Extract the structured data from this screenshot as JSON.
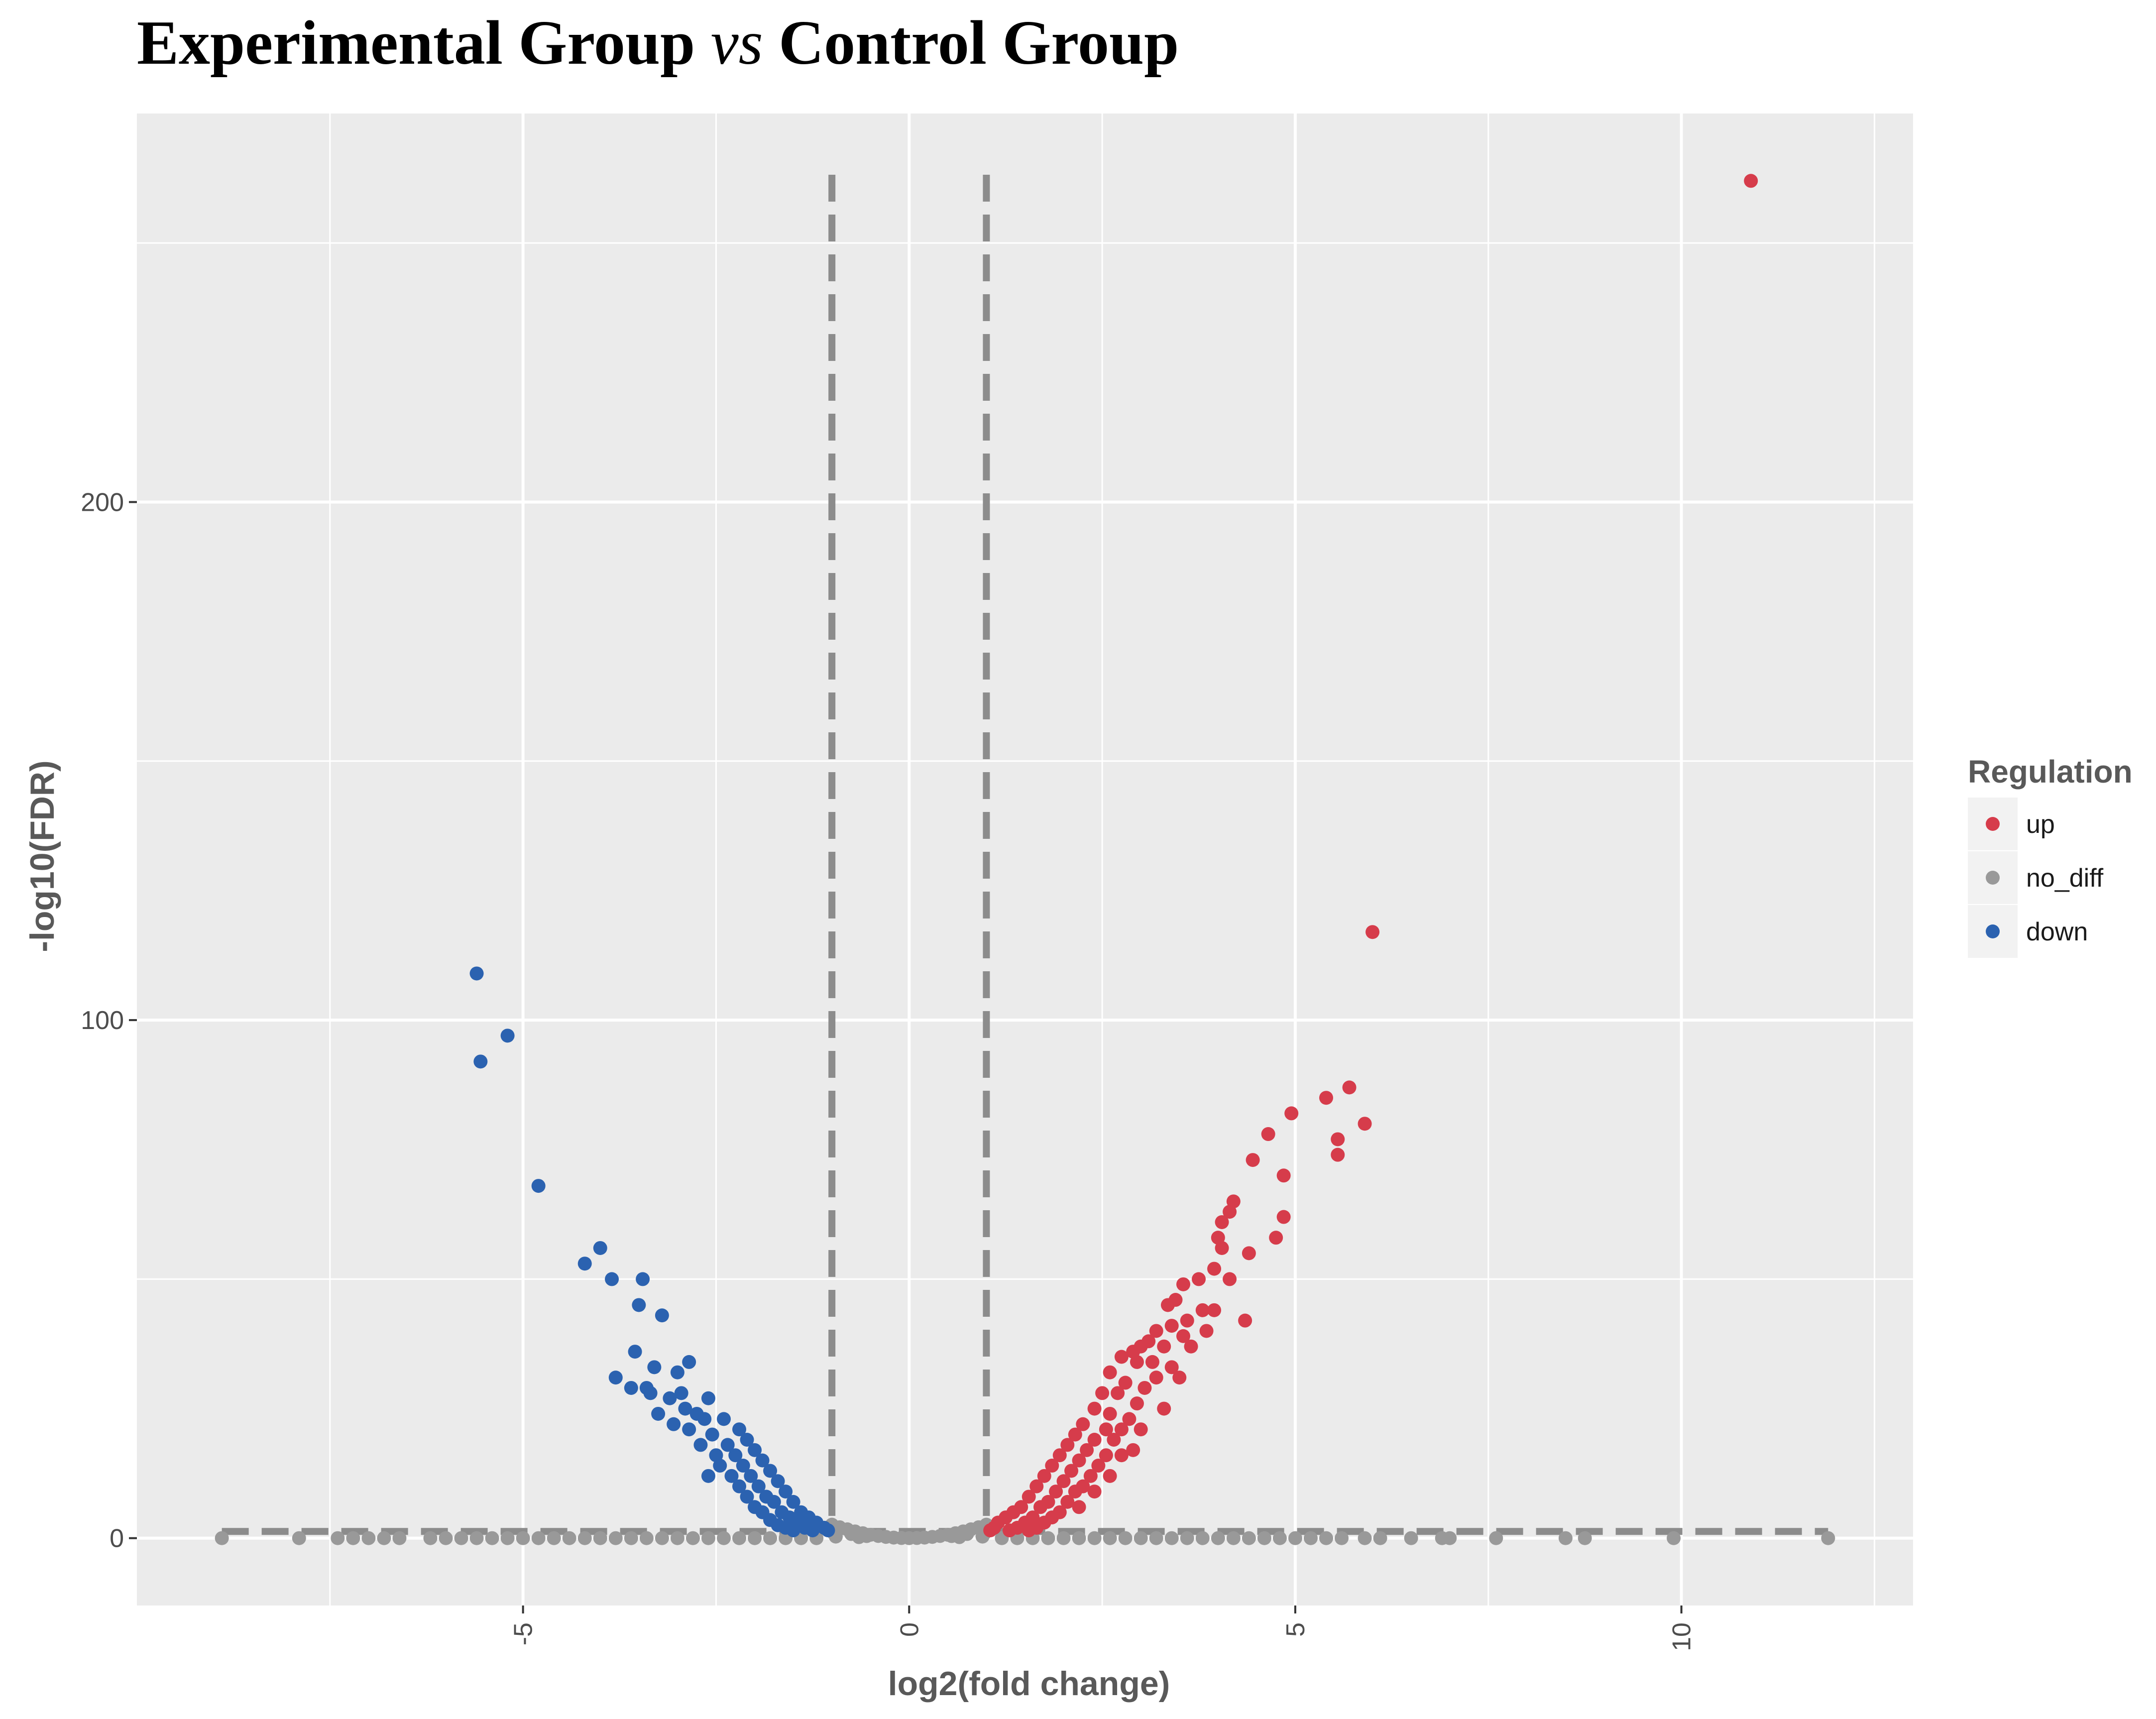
{
  "chart_data": {
    "type": "scatter",
    "title_parts": {
      "before": "Experimental Group ",
      "italic": "vs",
      "after": " Control Group"
    },
    "xlabel": "log2(fold change)",
    "ylabel": "-log10(FDR)",
    "xlim": [
      -10,
      13
    ],
    "ylim": [
      -13,
      275
    ],
    "x_ticks": [
      -5,
      0,
      5,
      10
    ],
    "x_tick_labels": [
      "-5",
      "0",
      "5",
      "10"
    ],
    "y_ticks": [
      0,
      100,
      200
    ],
    "y_tick_labels": [
      "0",
      "100",
      "200"
    ],
    "grid": true,
    "thresholds": {
      "fold_change_lines": [
        -1,
        1
      ],
      "fdr_line": 1.3
    },
    "legend": {
      "title": "Regulation",
      "placement": "right",
      "entries": [
        {
          "key": "up",
          "label": "up",
          "color": "#d63c4b"
        },
        {
          "key": "no_diff",
          "label": "no_diff",
          "color": "#999999"
        },
        {
          "key": "down",
          "label": "down",
          "color": "#2b62b0"
        }
      ]
    },
    "series": [
      {
        "name": "up",
        "color": "#d63c4b",
        "points": [
          [
            10.9,
            262
          ],
          [
            6.0,
            117
          ],
          [
            5.7,
            87
          ],
          [
            5.4,
            85
          ],
          [
            5.9,
            80
          ],
          [
            4.95,
            82
          ],
          [
            4.65,
            78
          ],
          [
            5.55,
            74
          ],
          [
            5.55,
            77
          ],
          [
            4.45,
            73
          ],
          [
            4.85,
            70
          ],
          [
            4.2,
            65
          ],
          [
            4.15,
            63
          ],
          [
            4.05,
            61
          ],
          [
            4.85,
            62
          ],
          [
            4.75,
            58
          ],
          [
            4.0,
            58
          ],
          [
            4.05,
            56
          ],
          [
            4.4,
            55
          ],
          [
            3.95,
            52
          ],
          [
            3.75,
            50
          ],
          [
            4.15,
            50
          ],
          [
            3.55,
            49
          ],
          [
            3.45,
            46
          ],
          [
            3.35,
            45
          ],
          [
            3.95,
            44
          ],
          [
            3.8,
            44
          ],
          [
            4.35,
            42
          ],
          [
            3.6,
            42
          ],
          [
            3.4,
            41
          ],
          [
            3.85,
            40
          ],
          [
            3.2,
            40
          ],
          [
            3.55,
            39
          ],
          [
            3.1,
            38
          ],
          [
            3.3,
            37
          ],
          [
            3.65,
            37
          ],
          [
            3.0,
            37
          ],
          [
            2.9,
            36
          ],
          [
            2.75,
            35
          ],
          [
            3.15,
            34
          ],
          [
            3.4,
            33
          ],
          [
            2.95,
            34
          ],
          [
            2.6,
            32
          ],
          [
            3.2,
            31
          ],
          [
            3.5,
            31
          ],
          [
            2.8,
            30
          ],
          [
            3.05,
            29
          ],
          [
            2.5,
            28
          ],
          [
            2.7,
            28
          ],
          [
            2.95,
            26
          ],
          [
            3.3,
            25
          ],
          [
            2.4,
            25
          ],
          [
            2.6,
            24
          ],
          [
            2.85,
            23
          ],
          [
            2.25,
            22
          ],
          [
            2.75,
            21
          ],
          [
            2.55,
            21
          ],
          [
            3.0,
            21
          ],
          [
            2.15,
            20
          ],
          [
            2.4,
            19
          ],
          [
            2.65,
            19
          ],
          [
            2.9,
            17
          ],
          [
            2.05,
            18
          ],
          [
            2.3,
            17
          ],
          [
            2.55,
            16
          ],
          [
            2.75,
            16
          ],
          [
            1.95,
            16
          ],
          [
            2.2,
            15
          ],
          [
            2.45,
            14
          ],
          [
            1.85,
            14
          ],
          [
            2.1,
            13
          ],
          [
            2.35,
            12
          ],
          [
            2.6,
            12
          ],
          [
            1.75,
            12
          ],
          [
            2.0,
            11
          ],
          [
            2.25,
            10
          ],
          [
            1.65,
            10
          ],
          [
            1.9,
            9
          ],
          [
            2.15,
            9
          ],
          [
            2.4,
            9
          ],
          [
            1.55,
            8
          ],
          [
            1.8,
            7
          ],
          [
            2.05,
            7
          ],
          [
            1.45,
            6
          ],
          [
            1.7,
            6
          ],
          [
            1.95,
            5
          ],
          [
            2.2,
            6
          ],
          [
            1.35,
            5
          ],
          [
            1.6,
            4
          ],
          [
            1.85,
            4
          ],
          [
            1.25,
            4
          ],
          [
            1.5,
            3
          ],
          [
            1.75,
            3
          ],
          [
            1.15,
            3
          ],
          [
            1.4,
            2
          ],
          [
            1.65,
            2
          ],
          [
            1.1,
            2
          ],
          [
            1.3,
            1.5
          ],
          [
            1.55,
            1.5
          ],
          [
            1.05,
            1.5
          ]
        ]
      },
      {
        "name": "down",
        "color": "#2b62b0",
        "points": [
          [
            -5.6,
            109
          ],
          [
            -5.2,
            97
          ],
          [
            -5.55,
            92
          ],
          [
            -4.8,
            68
          ],
          [
            -4.0,
            56
          ],
          [
            -4.2,
            53
          ],
          [
            -3.45,
            50
          ],
          [
            -3.85,
            50
          ],
          [
            -3.5,
            45
          ],
          [
            -3.2,
            43
          ],
          [
            -3.55,
            36
          ],
          [
            -2.85,
            34
          ],
          [
            -3.3,
            33
          ],
          [
            -3.0,
            32
          ],
          [
            -3.8,
            31
          ],
          [
            -3.6,
            29
          ],
          [
            -3.35,
            28
          ],
          [
            -3.4,
            29
          ],
          [
            -2.95,
            28
          ],
          [
            -3.1,
            27
          ],
          [
            -2.6,
            27
          ],
          [
            -2.9,
            25
          ],
          [
            -2.75,
            24
          ],
          [
            -3.25,
            24
          ],
          [
            -2.4,
            23
          ],
          [
            -2.65,
            23
          ],
          [
            -3.05,
            22
          ],
          [
            -2.2,
            21
          ],
          [
            -2.55,
            20
          ],
          [
            -2.85,
            21
          ],
          [
            -2.1,
            19
          ],
          [
            -2.35,
            18
          ],
          [
            -2.7,
            18
          ],
          [
            -2.0,
            17
          ],
          [
            -2.25,
            16
          ],
          [
            -2.5,
            16
          ],
          [
            -1.9,
            15
          ],
          [
            -2.15,
            14
          ],
          [
            -2.45,
            14
          ],
          [
            -1.8,
            13
          ],
          [
            -2.05,
            12
          ],
          [
            -2.3,
            12
          ],
          [
            -2.6,
            12
          ],
          [
            -1.7,
            11
          ],
          [
            -1.95,
            10
          ],
          [
            -2.2,
            10
          ],
          [
            -1.6,
            9
          ],
          [
            -1.85,
            8
          ],
          [
            -2.1,
            8
          ],
          [
            -1.5,
            7
          ],
          [
            -1.75,
            7
          ],
          [
            -2.0,
            6
          ],
          [
            -1.4,
            5
          ],
          [
            -1.65,
            5
          ],
          [
            -1.9,
            5
          ],
          [
            -1.3,
            4
          ],
          [
            -1.55,
            4
          ],
          [
            -1.8,
            3.5
          ],
          [
            -1.2,
            3
          ],
          [
            -1.45,
            3
          ],
          [
            -1.7,
            2.5
          ],
          [
            -1.1,
            2
          ],
          [
            -1.35,
            2
          ],
          [
            -1.6,
            2
          ],
          [
            -1.05,
            1.5
          ],
          [
            -1.25,
            1.5
          ],
          [
            -1.5,
            1.5
          ]
        ]
      },
      {
        "name": "no_diff",
        "color": "#999999",
        "points": [
          [
            -8.9,
            0
          ],
          [
            -7.9,
            0
          ],
          [
            -7.4,
            0
          ],
          [
            -7.2,
            0
          ],
          [
            -7.0,
            0
          ],
          [
            -6.8,
            0
          ],
          [
            -6.6,
            0
          ],
          [
            -6.2,
            0
          ],
          [
            -6.0,
            0
          ],
          [
            -5.8,
            0
          ],
          [
            -5.6,
            0
          ],
          [
            -5.4,
            0
          ],
          [
            -5.2,
            0
          ],
          [
            -5.0,
            0
          ],
          [
            -4.8,
            0
          ],
          [
            -4.6,
            0
          ],
          [
            -4.4,
            0
          ],
          [
            -4.2,
            0
          ],
          [
            -4.0,
            0
          ],
          [
            -3.8,
            0
          ],
          [
            -3.6,
            0
          ],
          [
            -3.4,
            0
          ],
          [
            -3.2,
            0
          ],
          [
            -3.0,
            0
          ],
          [
            -2.8,
            0
          ],
          [
            -2.6,
            0
          ],
          [
            -2.4,
            0
          ],
          [
            -2.2,
            0
          ],
          [
            -2.0,
            0
          ],
          [
            -1.8,
            0
          ],
          [
            -1.6,
            0
          ],
          [
            -1.4,
            0
          ],
          [
            -1.2,
            0
          ],
          [
            1.2,
            0
          ],
          [
            1.4,
            0
          ],
          [
            1.6,
            0
          ],
          [
            1.8,
            0
          ],
          [
            2.0,
            0
          ],
          [
            2.2,
            0
          ],
          [
            2.4,
            0
          ],
          [
            2.6,
            0
          ],
          [
            2.8,
            0
          ],
          [
            3.0,
            0
          ],
          [
            3.2,
            0
          ],
          [
            3.4,
            0
          ],
          [
            3.6,
            0
          ],
          [
            3.8,
            0
          ],
          [
            4.0,
            0
          ],
          [
            4.2,
            0
          ],
          [
            4.4,
            0
          ],
          [
            4.6,
            0
          ],
          [
            4.8,
            0
          ],
          [
            5.0,
            0
          ],
          [
            5.2,
            0
          ],
          [
            5.4,
            0
          ],
          [
            5.6,
            0
          ],
          [
            5.9,
            0
          ],
          [
            6.1,
            0
          ],
          [
            6.5,
            0
          ],
          [
            6.9,
            0
          ],
          [
            7.0,
            0
          ],
          [
            7.6,
            0
          ],
          [
            8.5,
            0
          ],
          [
            8.75,
            0
          ],
          [
            9.9,
            0
          ],
          [
            11.9,
            0
          ],
          [
            -1.0,
            2.6
          ],
          [
            -0.9,
            2.1
          ],
          [
            -0.8,
            1.7
          ],
          [
            -0.7,
            1.3
          ],
          [
            -0.6,
            0.95
          ],
          [
            -0.5,
            0.65
          ],
          [
            -0.4,
            0.42
          ],
          [
            -0.3,
            0.24
          ],
          [
            -0.2,
            0.11
          ],
          [
            -0.1,
            0.03
          ],
          [
            0.0,
            0.0
          ],
          [
            0.1,
            0.03
          ],
          [
            0.2,
            0.11
          ],
          [
            0.3,
            0.24
          ],
          [
            0.4,
            0.42
          ],
          [
            0.5,
            0.65
          ],
          [
            0.6,
            0.95
          ],
          [
            0.7,
            1.3
          ],
          [
            0.8,
            1.7
          ],
          [
            0.9,
            2.1
          ],
          [
            1.0,
            2.6
          ],
          [
            -0.95,
            1.2
          ],
          [
            -0.75,
            0.8
          ],
          [
            -0.55,
            0.4
          ],
          [
            0.55,
            0.4
          ],
          [
            0.75,
            0.8
          ],
          [
            0.95,
            1.2
          ],
          [
            -0.95,
            0.3
          ],
          [
            0.95,
            0.3
          ],
          [
            -0.65,
            0.2
          ],
          [
            0.65,
            0.2
          ]
        ]
      }
    ]
  }
}
